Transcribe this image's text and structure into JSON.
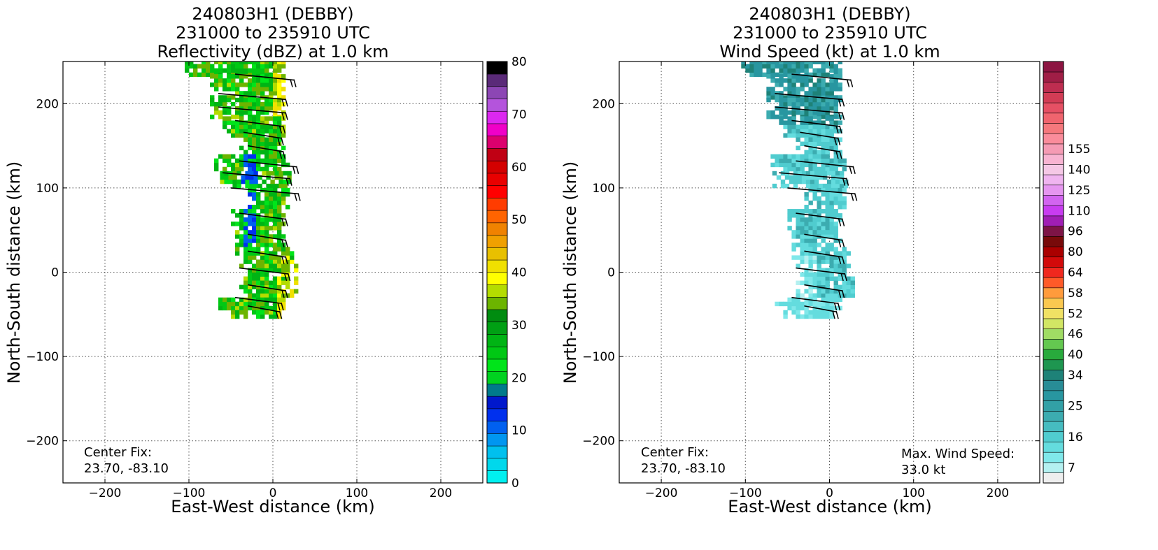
{
  "chart_data": [
    {
      "type": "heatmap",
      "title_lines": [
        "240803H1 (DEBBY)",
        "231000 to 235910 UTC",
        "Reflectivity (dBZ) at 1.0 km"
      ],
      "xlabel": "East-West distance (km)",
      "ylabel": "North-South distance (km)",
      "xlim": [
        -250,
        250
      ],
      "ylim": [
        -250,
        250
      ],
      "xticks": [
        -200,
        -100,
        0,
        100,
        200
      ],
      "yticks": [
        -200,
        -100,
        0,
        100,
        200
      ],
      "grid": true,
      "center_fix_label": "Center Fix:",
      "center_fix_value": "23.70, -83.10",
      "colorbar": {
        "min": 0,
        "max": 80,
        "ticks": [
          0,
          10,
          20,
          30,
          40,
          50,
          60,
          70,
          80
        ],
        "colors": [
          "#00f0f0",
          "#00d8ec",
          "#00c0ee",
          "#0096f0",
          "#0060f0",
          "#0030ee",
          "#0018cc",
          "#007a8c",
          "#00d220",
          "#00e41a",
          "#00c814",
          "#00b414",
          "#00a014",
          "#008c10",
          "#6cb400",
          "#b4dc00",
          "#ffff00",
          "#f0e000",
          "#e8c000",
          "#f0a000",
          "#f08200",
          "#ff6400",
          "#ff3c00",
          "#ff0000",
          "#e80000",
          "#d40000",
          "#c00014",
          "#dc006e",
          "#f000c8",
          "#dc28f0",
          "#b454dc",
          "#8c46b4",
          "#5a2a78",
          "#000000"
        ]
      }
    },
    {
      "type": "heatmap",
      "title_lines": [
        "240803H1 (DEBBY)",
        "231000 to 235910 UTC",
        "Wind Speed (kt) at 1.0 km"
      ],
      "xlabel": "East-West distance (km)",
      "ylabel": "North-South distance (km)",
      "xlim": [
        -250,
        250
      ],
      "ylim": [
        -250,
        250
      ],
      "xticks": [
        -200,
        -100,
        0,
        100,
        200
      ],
      "yticks": [
        -200,
        -100,
        0,
        100,
        200
      ],
      "grid": true,
      "center_fix_label": "Center Fix:",
      "center_fix_value": "23.70, -83.10",
      "max_wind_label": "Max. Wind Speed:",
      "max_wind_value": "33.0 kt",
      "colorbar": {
        "tick_labels": [
          "7",
          "16",
          "25",
          "34",
          "40",
          "46",
          "52",
          "58",
          "64",
          "80",
          "96",
          "110",
          "125",
          "140",
          "155"
        ],
        "tick_levels": [
          1,
          4,
          7,
          10,
          12,
          14,
          16,
          18,
          20,
          22,
          24,
          26,
          28,
          30,
          32
        ],
        "colors": [
          "#eeeeee",
          "#b4f0f0",
          "#80e8ea",
          "#64dcde",
          "#50cccf",
          "#46bcc0",
          "#3cacb0",
          "#32a0a6",
          "#2896a0",
          "#288c96",
          "#1e8278",
          "#1e9650",
          "#28aa3c",
          "#64c850",
          "#a0dc64",
          "#d2e664",
          "#f0e164",
          "#fac850",
          "#ff9b3c",
          "#ff5a28",
          "#f0281e",
          "#d20a0a",
          "#aa0000",
          "#780a0a",
          "#7d1446",
          "#a01eb4",
          "#c83cf0",
          "#d264f0",
          "#e696f0",
          "#f0b4f0",
          "#f5c8e6",
          "#f8b4d2",
          "#f59bb4",
          "#fa8c9b",
          "#f5787d",
          "#f0646e",
          "#e65064",
          "#d23c55",
          "#be2d50",
          "#a01e46",
          "#8c1441"
        ]
      }
    }
  ]
}
